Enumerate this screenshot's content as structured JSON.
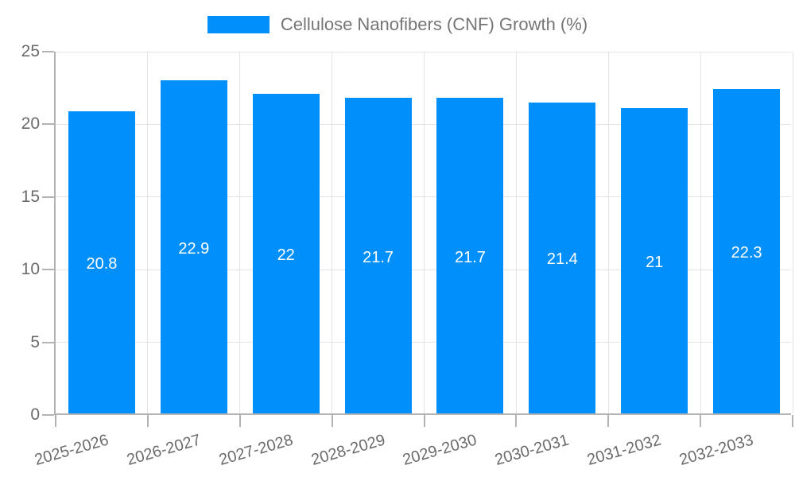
{
  "chart_data": {
    "type": "bar",
    "title": "Cellulose Nanofibers (CNF) Growth (%)",
    "legend": {
      "label": "Cellulose Nanofibers (CNF) Growth (%)",
      "position": "top-center"
    },
    "categories": [
      "2025-2026",
      "2026-2027",
      "2027-2028",
      "2028-2029",
      "2029-2030",
      "2030-2031",
      "2031-2032",
      "2032-2033"
    ],
    "values": [
      20.8,
      22.9,
      22,
      21.7,
      21.7,
      21.4,
      21,
      22.3
    ],
    "value_labels": [
      "20.8",
      "22.9",
      "22",
      "21.7",
      "21.7",
      "21.4",
      "21",
      "22.3"
    ],
    "xlabel": "",
    "ylabel": "",
    "ylim": [
      0,
      25
    ],
    "yticks": [
      0,
      5,
      10,
      15,
      20,
      25
    ],
    "grid": true,
    "legend_position": "top",
    "colors": {
      "bar": "#008FFB",
      "value_label": "#ffffff",
      "axis": "#b3b3b3",
      "gridline": "#e3e3e3",
      "tick_label": "#6b6b6b",
      "legend_text": "#757575",
      "background": "#ffffff"
    }
  }
}
